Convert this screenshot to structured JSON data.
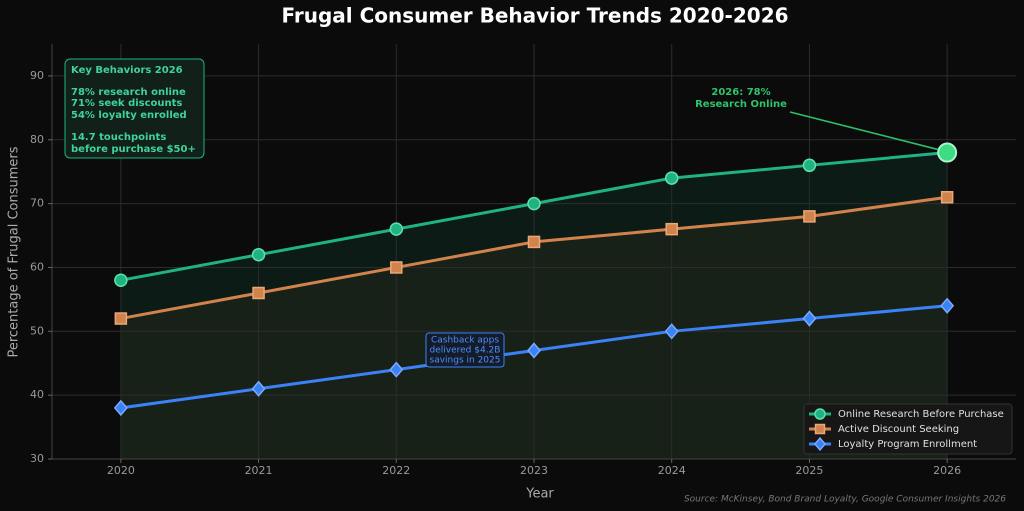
{
  "chart_data": {
    "type": "line",
    "title": "Frugal Consumer Behavior Trends 2020-2026",
    "x_label": "Year",
    "y_label": "Percentage of Frugal Consumers",
    "x": [
      2020,
      2021,
      2022,
      2023,
      2024,
      2025,
      2026
    ],
    "xlim": [
      2019.5,
      2026.5
    ],
    "xticks": [
      2020,
      2021,
      2022,
      2023,
      2024,
      2025,
      2026
    ],
    "ylim": [
      30,
      95
    ],
    "yticks": [
      30,
      40,
      50,
      60,
      70,
      80,
      90
    ],
    "grid": true,
    "legend": "lower right",
    "series": [
      {
        "name": "Online Research Before Purchase",
        "color": "#1fb383",
        "marker": "circle",
        "values": [
          58,
          62,
          66,
          70,
          74,
          76,
          78
        ]
      },
      {
        "name": "Active Discount Seeking",
        "color": "#d2834c",
        "marker": "square",
        "values": [
          52,
          56,
          60,
          64,
          66,
          68,
          71
        ]
      },
      {
        "name": "Loyalty Program Enrollment",
        "color": "#3b82f6",
        "marker": "diamond",
        "values": [
          38,
          41,
          44,
          47,
          50,
          52,
          54
        ]
      }
    ],
    "key_box": {
      "title": "Key Behaviors 2026",
      "lines": [
        "78% research online",
        "71% seek discounts",
        "54% loyalty enrolled",
        "14.7 touchpoints",
        "before purchase $50+"
      ]
    },
    "callout": [
      "2026: 78%",
      "Research Online"
    ],
    "note": [
      "Cashback apps",
      "delivered $4.2B",
      "savings in 2025"
    ],
    "source": "Source: McKinsey, Bond Brand Loyalty, Google Consumer Insights 2026"
  }
}
